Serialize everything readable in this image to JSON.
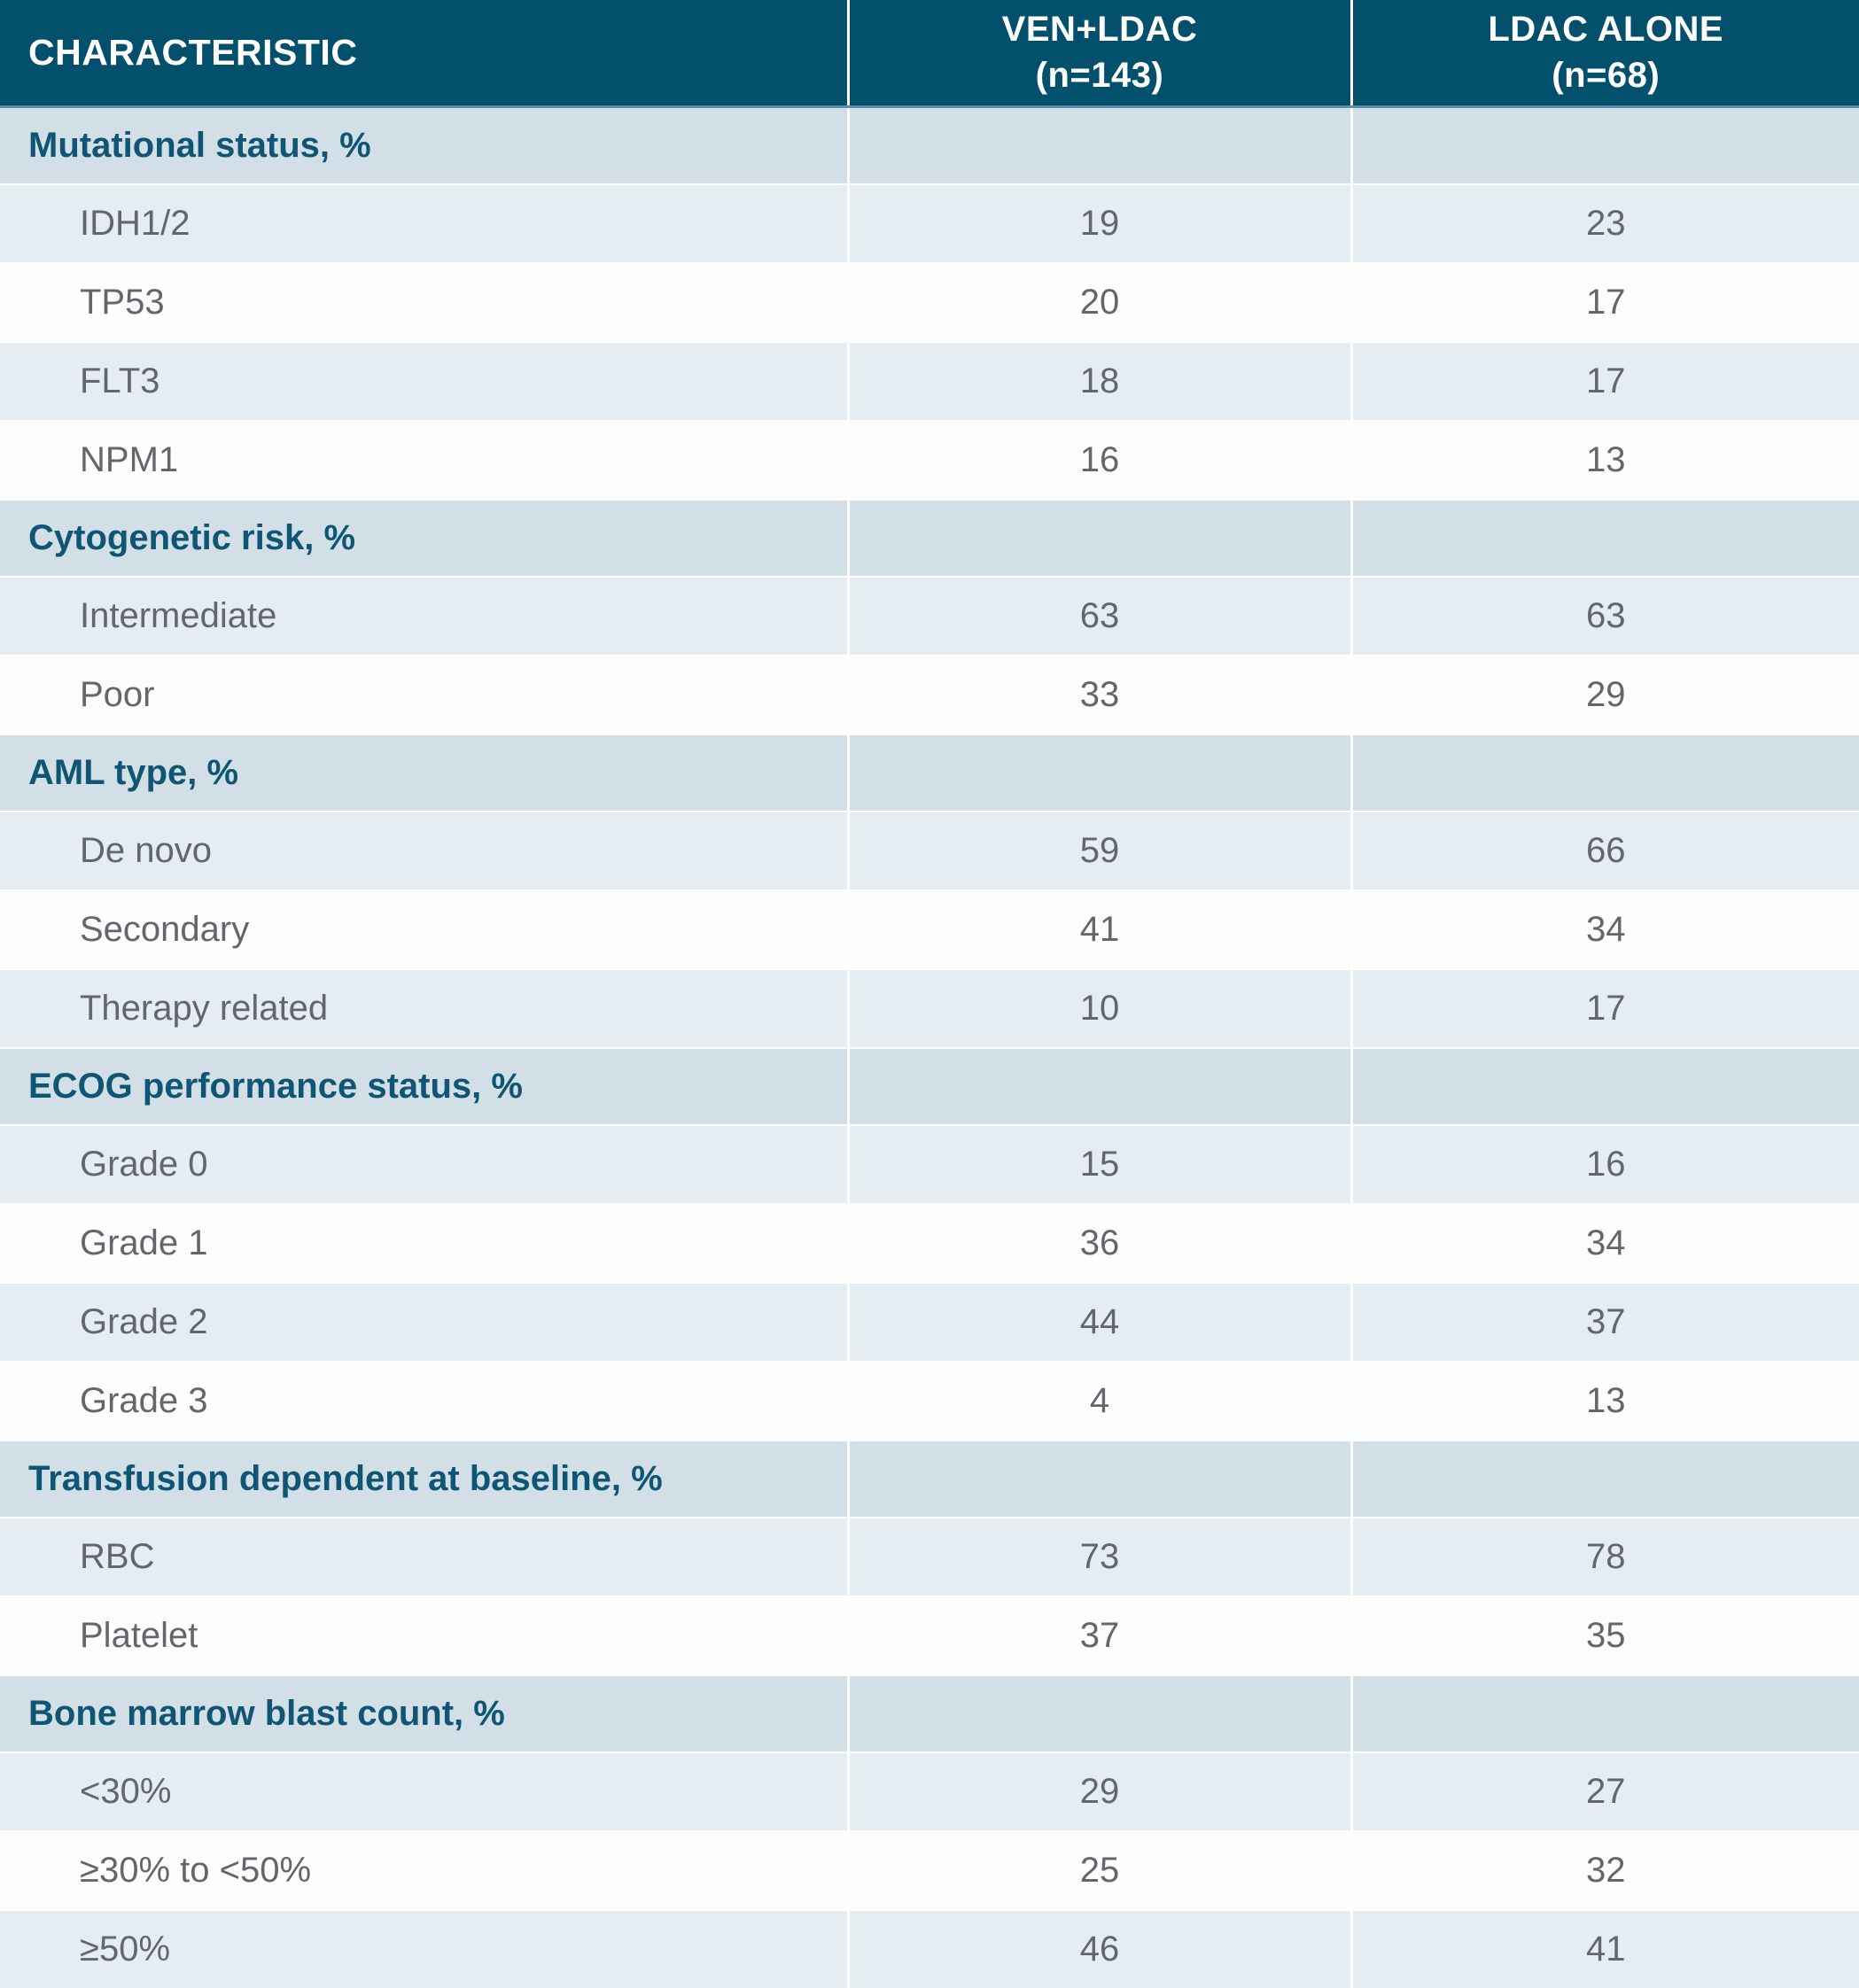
{
  "table": {
    "header": {
      "characteristic": "CHARACTERISTIC",
      "col1_line1": "VEN+LDAC",
      "col1_line2": "(n=143)",
      "col2_line1": "LDAC ALONE",
      "col2_line2": "(n=68)"
    },
    "sections": [
      {
        "header": "Mutational status, %",
        "rows": [
          [
            "IDH1/2",
            "19",
            "23"
          ],
          [
            "TP53",
            "20",
            "17"
          ],
          [
            "FLT3",
            "18",
            "17"
          ],
          [
            "NPM1",
            "16",
            "13"
          ]
        ]
      },
      {
        "header": "Cytogenetic risk, %",
        "rows": [
          [
            "Intermediate",
            "63",
            "63"
          ],
          [
            "Poor",
            "33",
            "29"
          ]
        ]
      },
      {
        "header": "AML type, %",
        "rows": [
          [
            "De novo",
            "59",
            "66"
          ],
          [
            "Secondary",
            "41",
            "34"
          ],
          [
            "Therapy related",
            "10",
            "17"
          ]
        ]
      },
      {
        "header": "ECOG performance status, %",
        "rows": [
          [
            "Grade 0",
            "15",
            "16"
          ],
          [
            "Grade 1",
            "36",
            "34"
          ],
          [
            "Grade 2",
            "44",
            "37"
          ],
          [
            "Grade 3",
            "4",
            "13"
          ]
        ]
      },
      {
        "header": "Transfusion dependent at baseline, %",
        "rows": [
          [
            "RBC",
            "73",
            "78"
          ],
          [
            "Platelet",
            "37",
            "35"
          ]
        ]
      },
      {
        "header": "Bone marrow blast count, %",
        "rows": [
          [
            "<30%",
            "29",
            "27"
          ],
          [
            "≥30% to <50%",
            "25",
            "32"
          ],
          [
            "≥50%",
            "46",
            "41"
          ]
        ]
      }
    ]
  },
  "colors": {
    "header_bg": "#03506C",
    "header_text": "#FFFFFF",
    "header_underline": "#5E8CA4",
    "section_bg": "#D3DFE7",
    "section_text": "#0F5674",
    "row_light_bg": "#E6EDF2",
    "row_white_bg": "#FDFDFE",
    "data_text": "#63666A",
    "divider": "#FFFFFF"
  }
}
